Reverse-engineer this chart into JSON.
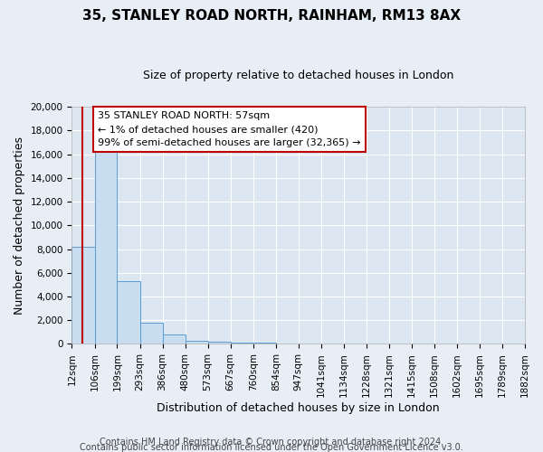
{
  "title": "35, STANLEY ROAD NORTH, RAINHAM, RM13 8AX",
  "subtitle": "Size of property relative to detached houses in London",
  "xlabel": "Distribution of detached houses by size in London",
  "ylabel": "Number of detached properties",
  "bar_color": "#c9ddf0",
  "bar_edge_color": "#5b9bd5",
  "background_color": "#e8eef5",
  "plot_bg_color": "#dce6f1",
  "grid_color": "#ffffff",
  "red_line_color": "#c00000",
  "annotation_box_facecolor": "#ffffff",
  "annotation_box_edgecolor": "#c00000",
  "bin_edges": [
    12,
    106,
    199,
    293,
    386,
    480,
    573,
    667,
    760,
    854,
    947,
    1041,
    1134,
    1228,
    1321,
    1415,
    1508,
    1602,
    1695,
    1789,
    1882
  ],
  "bar_heights": [
    8200,
    16500,
    5300,
    1800,
    800,
    300,
    200,
    150,
    100,
    0,
    0,
    0,
    0,
    0,
    0,
    0,
    0,
    0,
    0,
    0
  ],
  "property_size": 57,
  "ylim": [
    0,
    20000
  ],
  "yticks": [
    0,
    2000,
    4000,
    6000,
    8000,
    10000,
    12000,
    14000,
    16000,
    18000,
    20000
  ],
  "annotation_line1": "35 STANLEY ROAD NORTH: 57sqm",
  "annotation_line2": "← 1% of detached houses are smaller (420)",
  "annotation_line3": "99% of semi-detached houses are larger (32,365) →",
  "footer1": "Contains HM Land Registry data © Crown copyright and database right 2024.",
  "footer2": "Contains public sector information licensed under the Open Government Licence v3.0.",
  "title_fontsize": 11,
  "subtitle_fontsize": 9,
  "footer_fontsize": 7,
  "axis_label_fontsize": 9,
  "tick_fontsize": 7.5
}
